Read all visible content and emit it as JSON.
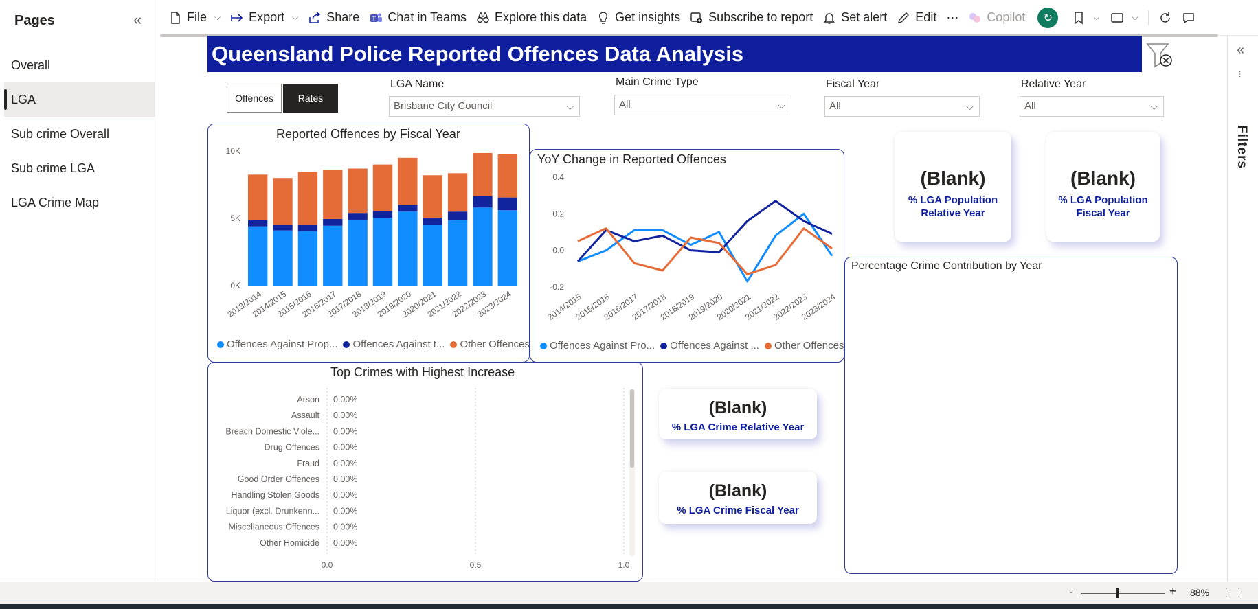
{
  "pages_pane": {
    "title": "Pages",
    "items": [
      {
        "label": "Overall",
        "active": false
      },
      {
        "label": "LGA",
        "active": true
      },
      {
        "label": "Sub crime Overall",
        "active": false
      },
      {
        "label": "Sub crime LGA",
        "active": false
      },
      {
        "label": "LGA Crime Map",
        "active": false
      }
    ]
  },
  "toolbar": {
    "file": "File",
    "export": "Export",
    "share": "Share",
    "chat": "Chat in Teams",
    "explore": "Explore this data",
    "insights": "Get insights",
    "subscribe": "Subscribe to report",
    "alert": "Set alert",
    "edit": "Edit",
    "more": "···",
    "copilot": "Copilot"
  },
  "filters_pane": {
    "label": "Filters"
  },
  "report": {
    "title": "Queensland Police Reported Offences Data Analysis",
    "toggle": {
      "offences": "Offences",
      "rates": "Rates"
    },
    "slicers": {
      "lga": {
        "label": "LGA Name",
        "value": "Brisbane City Council"
      },
      "crime_type": {
        "label": "Main Crime Type",
        "value": "All"
      },
      "fiscal_year": {
        "label": "Fiscal Year",
        "value": "All"
      },
      "relative_year": {
        "label": "Relative Year",
        "value": "All"
      }
    },
    "cards": {
      "pop_relative": {
        "value": "(Blank)",
        "label1": "% LGA Population",
        "label2": "Relative Year"
      },
      "pop_fiscal": {
        "value": "(Blank)",
        "label1": "% LGA Population",
        "label2": "Fiscal Year"
      },
      "crime_relative": {
        "value": "(Blank)",
        "label": "% LGA  Crime Relative Year"
      },
      "crime_fiscal": {
        "value": "(Blank)",
        "label": "% LGA Crime Fiscal Year"
      }
    },
    "percentage_visual": {
      "title": "Percentage Crime Contribution by Year"
    }
  },
  "colors": {
    "property": "#118dff",
    "person": "#12239e",
    "other": "#e66c37",
    "banner": "#0e1e9c"
  },
  "chart_data": [
    {
      "type": "bar",
      "stacked": true,
      "title": "Reported Offences by Fiscal Year",
      "categories": [
        "2013/2014",
        "2014/2015",
        "2015/2016",
        "2016/2017",
        "2017/2018",
        "2018/2019",
        "2019/2020",
        "2020/2021",
        "2021/2022",
        "2022/2023",
        "2023/2024"
      ],
      "yticks": [
        "0K",
        "5K",
        "10K"
      ],
      "ylim": [
        0,
        10000
      ],
      "series": [
        {
          "name": "Offences Against Property",
          "legend": "Offences Against Prop...",
          "color": "#118dff",
          "values": [
            4400,
            4100,
            4050,
            4450,
            4900,
            5050,
            5500,
            4500,
            4850,
            5800,
            5600
          ]
        },
        {
          "name": "Offences Against the Person",
          "legend": "Offences Against t...",
          "color": "#12239e",
          "values": [
            450,
            400,
            450,
            500,
            500,
            500,
            500,
            550,
            650,
            850,
            950
          ]
        },
        {
          "name": "Other Offences",
          "legend": "Other Offences",
          "color": "#e66c37",
          "values": [
            3400,
            3500,
            3950,
            3650,
            3300,
            3450,
            3500,
            3150,
            2850,
            3200,
            3200
          ]
        }
      ],
      "legend_position": "bottom"
    },
    {
      "type": "line",
      "title": "YoY Change in Reported Offences",
      "categories": [
        "2014/2015",
        "2015/2016",
        "2016/2017",
        "2017/2018",
        "2018/2019",
        "2019/2020",
        "2020/2021",
        "2021/2022",
        "2022/2023",
        "2023/2024"
      ],
      "yticks": [
        "0.4",
        "0.2",
        "0.0",
        "-0.2"
      ],
      "ylim": [
        -0.2,
        0.4
      ],
      "series": [
        {
          "name": "Offences Against Property",
          "legend": "Offences Against Pro...",
          "color": "#118dff",
          "values": [
            -0.06,
            0.0,
            0.11,
            0.11,
            0.03,
            0.1,
            -0.17,
            0.08,
            0.2,
            -0.03
          ]
        },
        {
          "name": "Offences Against the Person",
          "legend": "Offences Against ...",
          "color": "#12239e",
          "values": [
            -0.06,
            0.11,
            0.05,
            0.08,
            0.0,
            -0.01,
            0.16,
            0.27,
            0.16,
            0.09
          ]
        },
        {
          "name": "Other Offences",
          "legend": "Other Offences",
          "color": "#e66c37",
          "values": [
            0.05,
            0.12,
            -0.07,
            -0.11,
            0.07,
            0.04,
            -0.13,
            -0.08,
            0.12,
            0.01
          ]
        }
      ],
      "legend_position": "bottom"
    },
    {
      "type": "bar",
      "orientation": "horizontal",
      "title": "Top Crimes with Highest Increase",
      "categories": [
        "Arson",
        "Assault",
        "Breach Domestic Viole...",
        "Drug Offences",
        "Fraud",
        "Good Order Offences",
        "Handling Stolen Goods",
        "Liquor (excl. Drunkenn...",
        "Miscellaneous Offences",
        "Other Homicide"
      ],
      "labels": [
        "0.00%",
        "0.00%",
        "0.00%",
        "0.00%",
        "0.00%",
        "0.00%",
        "0.00%",
        "0.00%",
        "0.00%",
        "0.00%"
      ],
      "values": [
        0,
        0,
        0,
        0,
        0,
        0,
        0,
        0,
        0,
        0
      ],
      "xticks": [
        "0.0",
        "0.5",
        "1.0"
      ],
      "xlim": [
        0,
        1
      ]
    }
  ]
}
